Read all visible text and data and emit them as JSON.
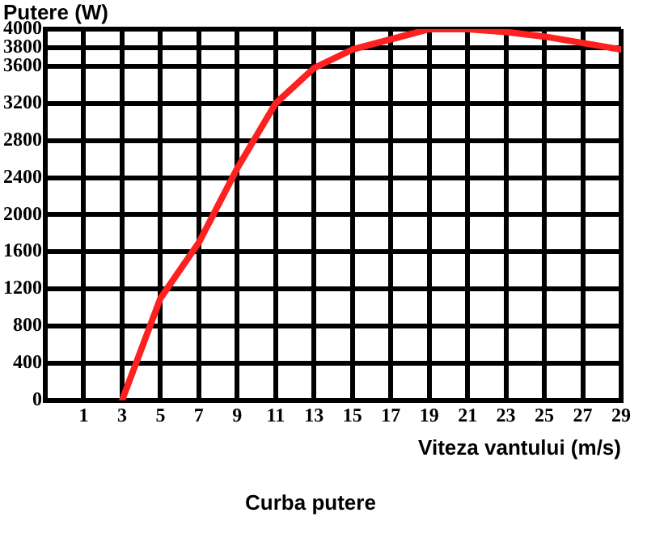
{
  "chart_data": {
    "type": "line",
    "title": "Curba putere",
    "xlabel": "Viteza vantului (m/s)",
    "ylabel": "Putere (W)",
    "x": [
      3,
      5,
      7,
      9,
      11,
      13,
      15,
      19,
      21,
      23,
      25,
      29
    ],
    "series": [
      {
        "color": "#ff2020",
        "values": [
          0,
          1100,
          1700,
          2500,
          3200,
          3580,
          3780,
          4000,
          4000,
          3970,
          3920,
          3780
        ]
      }
    ],
    "xlim": [
      -1,
      29
    ],
    "xticks": [
      1,
      3,
      5,
      7,
      9,
      11,
      13,
      15,
      17,
      19,
      21,
      23,
      25,
      27,
      29
    ],
    "ylim": [
      0,
      4000
    ],
    "yticks": [
      0,
      400,
      800,
      1200,
      1600,
      2000,
      2400,
      2800,
      3200,
      3600,
      3800,
      4000
    ],
    "grid": true,
    "legend": false,
    "marker": "none",
    "line_style": "solid"
  }
}
